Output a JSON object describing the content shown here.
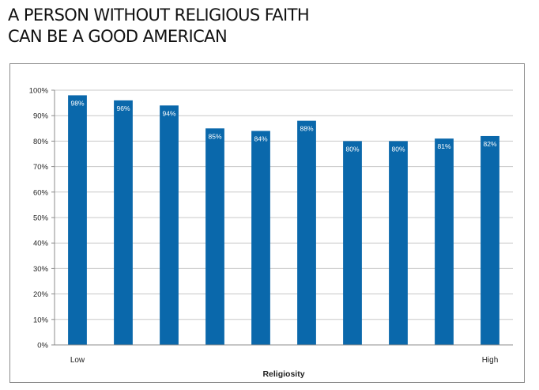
{
  "title": {
    "line1": "A PERSON WITHOUT RELIGIOUS FAITH",
    "line2": "CAN BE A GOOD AMERICAN"
  },
  "colors": {
    "bar": "#0a68ab",
    "grid": "#c8c8c8",
    "axis": "#8c8c8c",
    "label": "#ffffff",
    "text": "#222222"
  },
  "chart_data": {
    "type": "bar",
    "title": "A PERSON WITHOUT RELIGIOUS FAITH CAN BE A GOOD AMERICAN",
    "xlabel": "Religiosity",
    "ylabel": "",
    "categories": [
      "Low",
      "",
      "",
      "",
      "",
      "",
      "",
      "",
      "",
      "High"
    ],
    "values": [
      98,
      96,
      94,
      85,
      84,
      88,
      80,
      80,
      81,
      82
    ],
    "data_labels": [
      "98%",
      "96%",
      "94%",
      "85%",
      "84%",
      "88%",
      "80%",
      "80%",
      "81%",
      "82%"
    ],
    "ylim": [
      0,
      100
    ],
    "yticks": [
      0,
      10,
      20,
      30,
      40,
      50,
      60,
      70,
      80,
      90,
      100
    ],
    "ytick_labels": [
      "0%",
      "10%",
      "20%",
      "30%",
      "40%",
      "50%",
      "60%",
      "70%",
      "80%",
      "90%",
      "100%"
    ],
    "grid": true,
    "legend": "none"
  }
}
